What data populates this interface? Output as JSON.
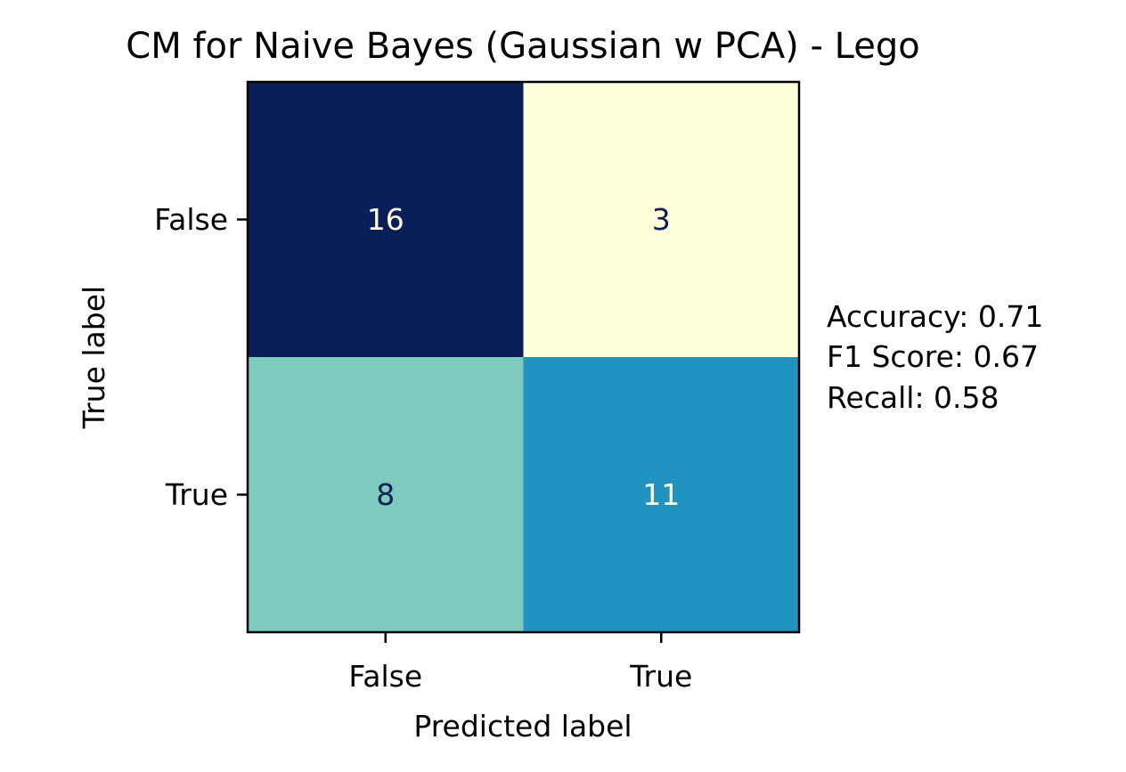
{
  "chart_data": {
    "type": "heatmap",
    "title": "CM for Naive Bayes (Gaussian w PCA) - Lego",
    "xlabel": "Predicted label",
    "ylabel": "True label",
    "x_categories": [
      "False",
      "True"
    ],
    "y_categories": [
      "False",
      "True"
    ],
    "matrix": [
      [
        16,
        3
      ],
      [
        8,
        11
      ]
    ],
    "colormap": "YlGnBu",
    "cell_colors": [
      [
        "#0a1e58",
        "#ffffd9"
      ],
      [
        "#7ccbbd",
        "#2093c0"
      ]
    ],
    "value_text_colors": [
      [
        "#ffffe0",
        "#0a1e58"
      ],
      [
        "#0a1e58",
        "#ffffe0"
      ]
    ],
    "grid": false,
    "annotations": [
      "Accuracy: 0.71",
      "F1 Score: 0.67",
      "Recall: 0.58"
    ]
  }
}
